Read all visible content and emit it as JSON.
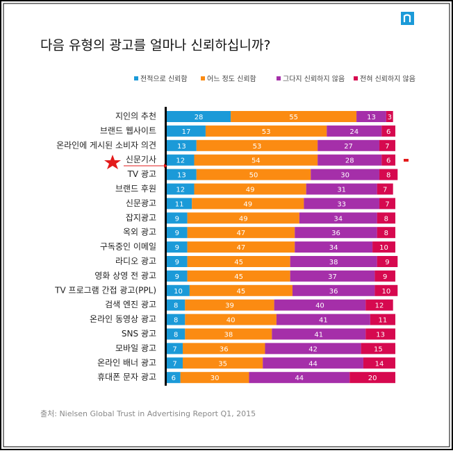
{
  "chart_data": {
    "type": "bar",
    "orientation": "horizontal",
    "stacked": true,
    "title": "다음 유형의 광고를 얼마나 신뢰하십니까?",
    "source": "출처: Nielsen Global Trust in Advertising Report Q1, 2015",
    "categories": [
      "지인의 추천",
      "브랜드 웹사이트",
      "온라인에 게시된 소비자 의견",
      "신문기사",
      "TV 광고",
      "브랜드 후원",
      "신문광고",
      "잡지광고",
      "옥외 광고",
      "구독중인 이메일",
      "라디오 광고",
      "영화 상영 전 광고",
      "TV 프로그램 간접 광고(PPL)",
      "검색 엔진 광고",
      "온라인 동영상 광고",
      "SNS 광고",
      "모바일 광고",
      "온라인 배너 광고",
      "휴대폰 문자 광고"
    ],
    "series": [
      {
        "name": "전적으로 신뢰함",
        "color": "#1b9ad8",
        "values": [
          28,
          17,
          13,
          12,
          13,
          12,
          11,
          9,
          9,
          9,
          9,
          9,
          10,
          8,
          8,
          8,
          7,
          7,
          6
        ]
      },
      {
        "name": "어느 정도 신뢰함",
        "color": "#fb8b12",
        "values": [
          55,
          53,
          53,
          54,
          50,
          49,
          49,
          49,
          47,
          47,
          45,
          45,
          45,
          39,
          40,
          38,
          36,
          35,
          30
        ]
      },
      {
        "name": "그다지 신뢰하지 않음",
        "color": "#a52fa9",
        "values": [
          13,
          24,
          27,
          28,
          30,
          31,
          33,
          34,
          36,
          34,
          38,
          37,
          36,
          40,
          41,
          41,
          42,
          44,
          44
        ]
      },
      {
        "name": "전혀 신뢰하지 않음",
        "color": "#d6094f",
        "values": [
          3,
          6,
          7,
          6,
          8,
          7,
          7,
          8,
          8,
          10,
          9,
          9,
          10,
          12,
          11,
          13,
          15,
          14,
          20
        ]
      }
    ],
    "legend": "top"
  }
}
